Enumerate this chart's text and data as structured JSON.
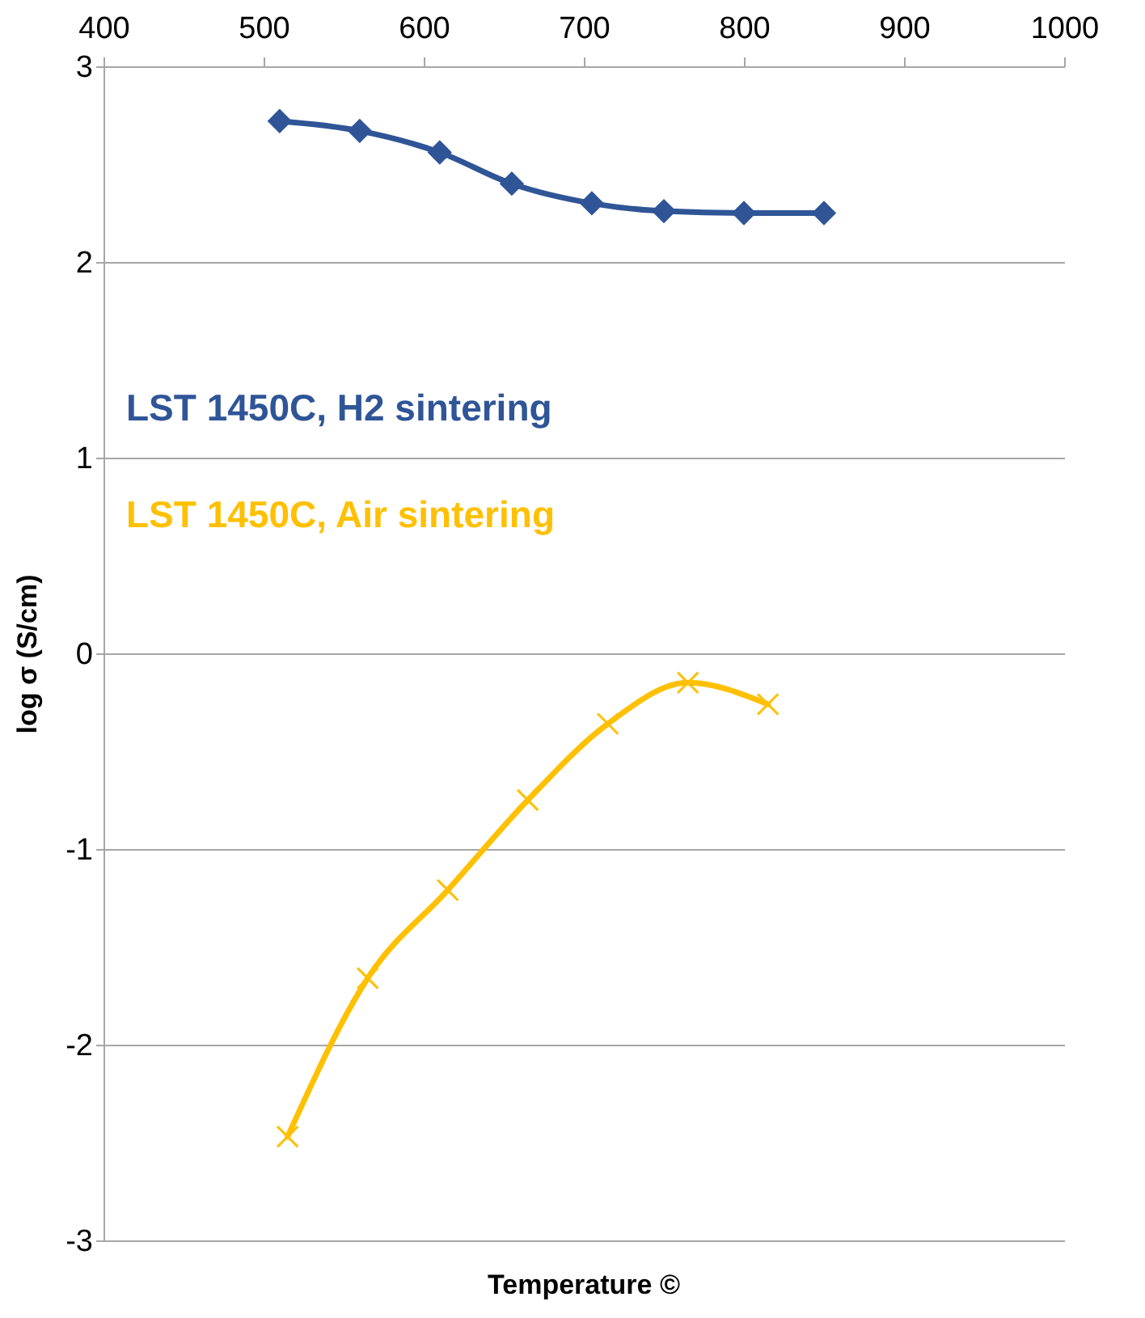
{
  "chart_data": {
    "type": "line",
    "xlabel": "Temperature ©",
    "ylabel": "log σ (S/cm)",
    "xlim": [
      400,
      1000
    ],
    "xticks": [
      400,
      500,
      600,
      700,
      800,
      900,
      1000
    ],
    "ylim": [
      -3,
      3
    ],
    "yticks": [
      -3,
      -2,
      -1,
      0,
      1,
      2,
      3
    ],
    "grid": "y",
    "legend": false,
    "series": [
      {
        "name": "LST 1450C, H2 sintering",
        "color": "#2f5597",
        "marker": "diamond",
        "x": [
          510,
          560,
          610,
          655,
          705,
          750,
          800,
          850
        ],
        "values": [
          2.72,
          2.67,
          2.56,
          2.4,
          2.3,
          2.26,
          2.25,
          2.25
        ]
      },
      {
        "name": "LST 1450C, Air sintering",
        "color": "#ffc000",
        "marker": "cross",
        "x": [
          515,
          565,
          615,
          665,
          715,
          765,
          815
        ],
        "values": [
          -2.47,
          -1.66,
          -1.21,
          -0.75,
          -0.36,
          -0.15,
          -0.26
        ]
      }
    ]
  }
}
